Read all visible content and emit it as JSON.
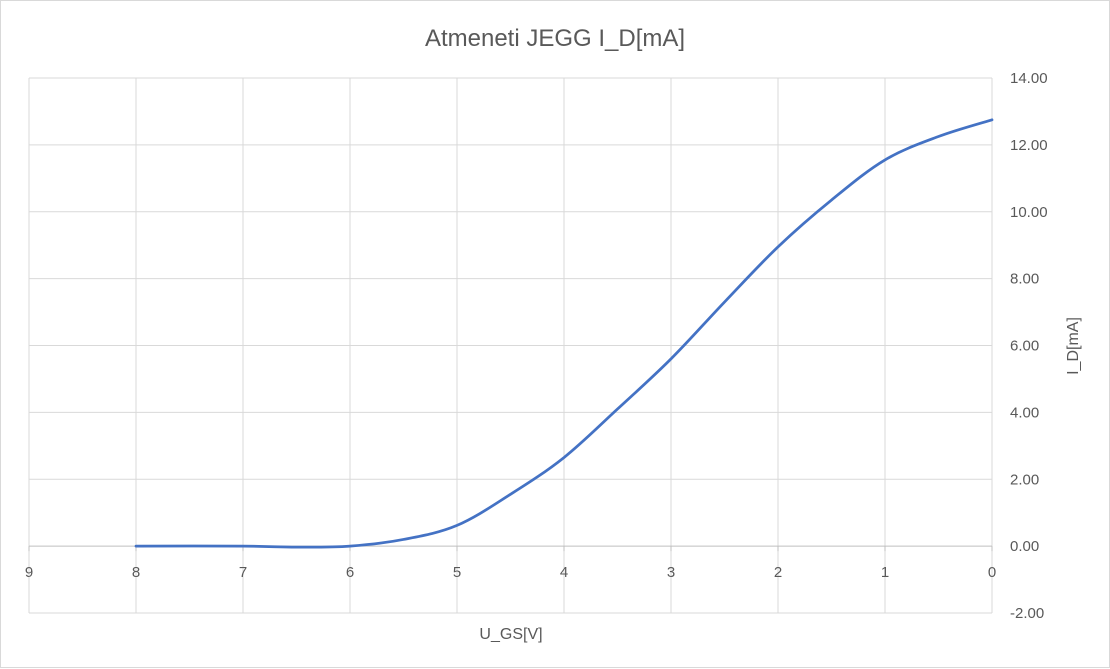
{
  "chart_data": {
    "type": "line",
    "title": "Atmeneti JEGG I_D[mA]",
    "xlabel": "U_GS[V]",
    "ylabel": "I_D[mA]",
    "x_reversed": true,
    "xlim": [
      0,
      9
    ],
    "ylim": [
      -2,
      14
    ],
    "x_ticks": [
      "9",
      "8",
      "7",
      "6",
      "5",
      "4",
      "3",
      "2",
      "1",
      "0"
    ],
    "y_ticks": [
      "14.00",
      "12.00",
      "10.00",
      "8.00",
      "6.00",
      "4.00",
      "2.00",
      "0.00",
      "-2.00"
    ],
    "grid": true,
    "legend": "none",
    "series": [
      {
        "color": "#4472c4",
        "x": [
          8,
          7,
          6.5,
          6,
          5.5,
          5,
          4.5,
          4,
          3.5,
          3,
          2.5,
          2,
          1.5,
          1,
          0.5,
          0
        ],
        "y": [
          0,
          0,
          -0.03,
          0,
          0.2,
          0.62,
          1.55,
          2.65,
          4.1,
          5.6,
          7.3,
          8.95,
          10.35,
          11.55,
          12.25,
          12.75
        ]
      }
    ]
  }
}
